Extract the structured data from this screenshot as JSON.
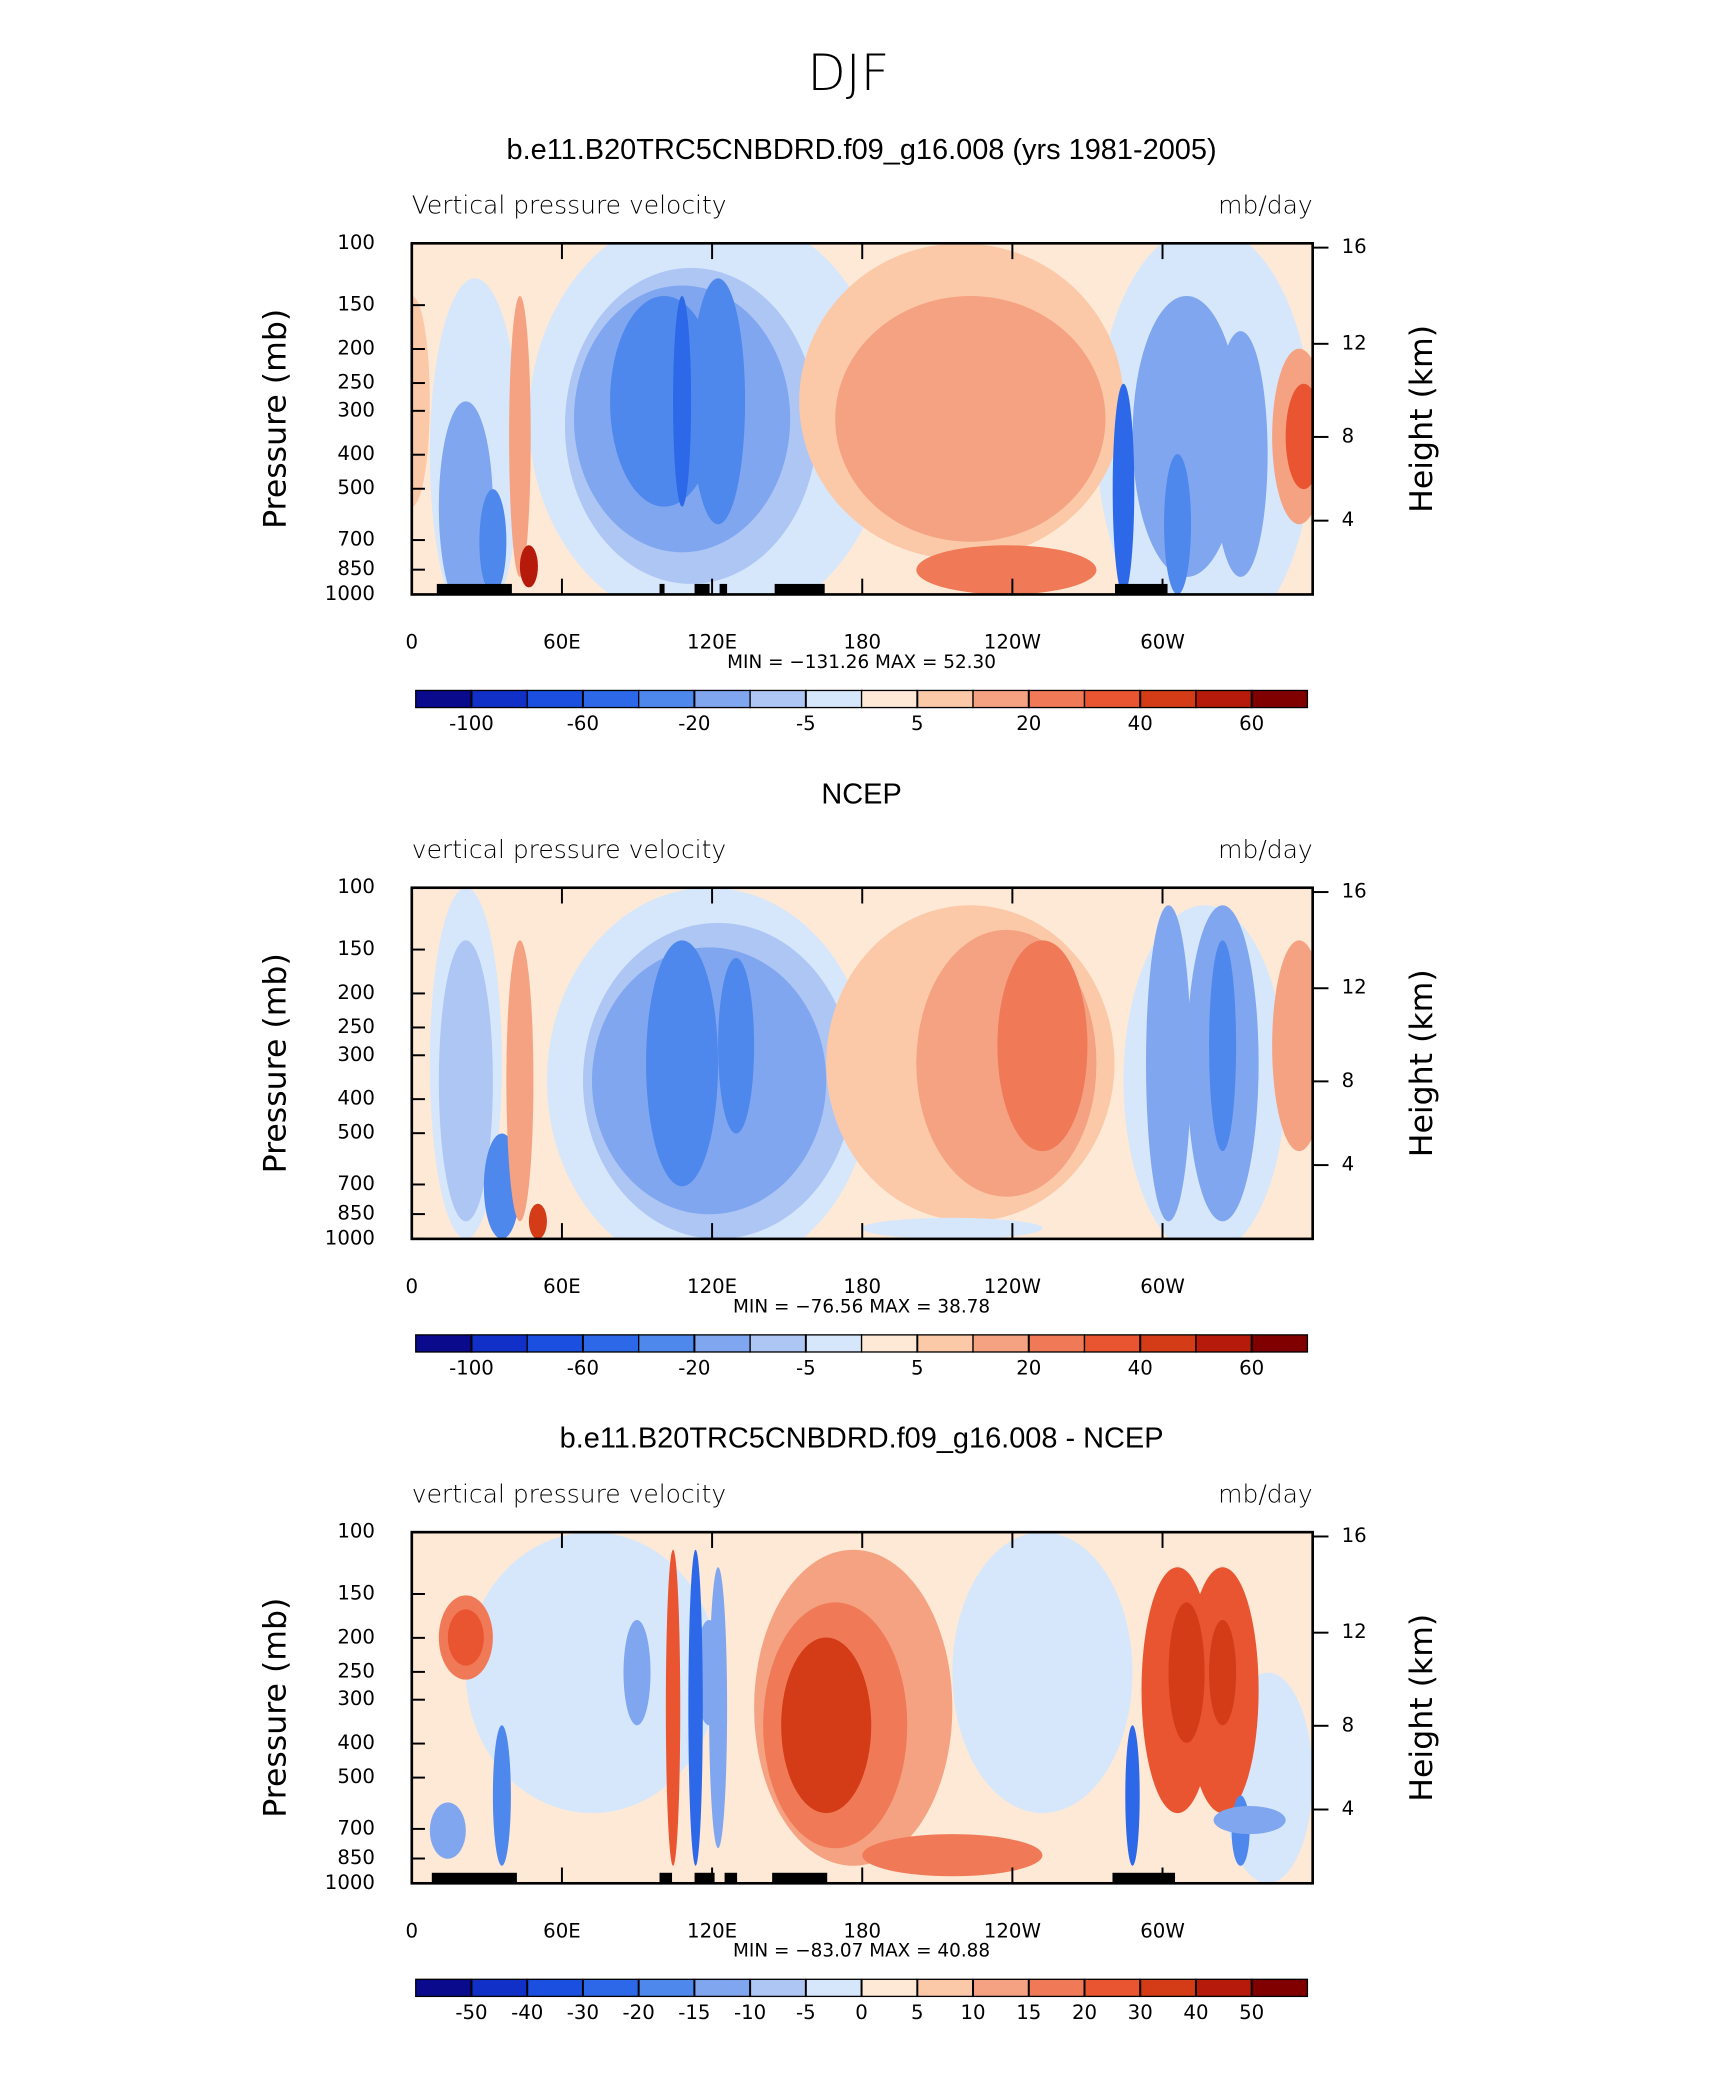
{
  "title": "DJF",
  "chart_data": [
    {
      "type": "contour",
      "title": "b.e11.B20TRC5CNBDRD.f09_g16.008 (yrs 1981-2005)",
      "subtitle_left": "Vertical pressure velocity",
      "units": "mb/day",
      "ylabel": "Pressure (mb)",
      "y2label": "Height (km)",
      "xlim": [
        0,
        360
      ],
      "xticks": [
        0,
        {
          "value": 60,
          "label": "60E"
        },
        {
          "value": 120,
          "label": "120E"
        },
        180,
        {
          "value": 240,
          "label": "120W"
        },
        {
          "value": 300,
          "label": "60W"
        }
      ],
      "ylim": [
        1000,
        100
      ],
      "yscale": "log",
      "yticks": [
        100,
        150,
        200,
        250,
        300,
        400,
        500,
        700,
        850,
        1000
      ],
      "y2scale": "standard-atmosphere",
      "y2ticks": [
        4,
        8,
        12,
        16
      ],
      "stats": "MIN = −131.26   MAX =   52.30",
      "colorbar": {
        "levels": [
          -100,
          -60,
          -20,
          -5,
          5,
          20,
          40,
          60
        ],
        "colors": [
          "#0a0a8c",
          "#1030c8",
          "#1a4fe0",
          "#2c68e8",
          "#4f88ec",
          "#80a6ef",
          "#adc6f4",
          "#d6e7fb",
          "#fde9d6",
          "#fbc9a8",
          "#f5a282",
          "#f07a57",
          "#e85530",
          "#d33c16",
          "#b51a0a",
          "#800000"
        ]
      }
    },
    {
      "type": "contour",
      "title": "NCEP",
      "subtitle_left": "vertical pressure velocity",
      "units": "mb/day",
      "ylabel": "Pressure (mb)",
      "y2label": "Height (km)",
      "xlim": [
        0,
        360
      ],
      "xticks": [
        0,
        {
          "value": 60,
          "label": "60E"
        },
        {
          "value": 120,
          "label": "120E"
        },
        180,
        {
          "value": 240,
          "label": "120W"
        },
        {
          "value": 300,
          "label": "60W"
        }
      ],
      "ylim": [
        1000,
        100
      ],
      "yscale": "log",
      "yticks": [
        100,
        150,
        200,
        250,
        300,
        400,
        500,
        700,
        850,
        1000
      ],
      "y2scale": "standard-atmosphere",
      "y2ticks": [
        4,
        8,
        12,
        16
      ],
      "stats": "MIN =  −76.56   MAX =   38.78",
      "colorbar": {
        "levels": [
          -100,
          -60,
          -20,
          -5,
          5,
          20,
          40,
          60
        ],
        "colors": [
          "#0a0a8c",
          "#1030c8",
          "#1a4fe0",
          "#2c68e8",
          "#4f88ec",
          "#80a6ef",
          "#adc6f4",
          "#d6e7fb",
          "#fde9d6",
          "#fbc9a8",
          "#f5a282",
          "#f07a57",
          "#e85530",
          "#d33c16",
          "#b51a0a",
          "#800000"
        ]
      }
    },
    {
      "type": "contour",
      "title": "b.e11.B20TRC5CNBDRD.f09_g16.008 - NCEP",
      "subtitle_left": "vertical pressure velocity",
      "units": "mb/day",
      "ylabel": "Pressure (mb)",
      "y2label": "Height (km)",
      "xlim": [
        0,
        360
      ],
      "xticks": [
        0,
        {
          "value": 60,
          "label": "60E"
        },
        {
          "value": 120,
          "label": "120E"
        },
        180,
        {
          "value": 240,
          "label": "120W"
        },
        {
          "value": 300,
          "label": "60W"
        }
      ],
      "ylim": [
        1000,
        100
      ],
      "yscale": "log",
      "yticks": [
        100,
        150,
        200,
        250,
        300,
        400,
        500,
        700,
        850,
        1000
      ],
      "y2scale": "standard-atmosphere",
      "y2ticks": [
        4,
        8,
        12,
        16
      ],
      "stats": "MIN =  −83.07   MAX =   40.88",
      "colorbar": {
        "levels": [
          -50,
          -40,
          -30,
          -20,
          -15,
          -10,
          -5,
          0,
          5,
          10,
          15,
          20,
          30,
          40,
          50
        ],
        "colors": [
          "#0a0a8c",
          "#1030c8",
          "#1a4fe0",
          "#2c68e8",
          "#4f88ec",
          "#80a6ef",
          "#adc6f4",
          "#d6e7fb",
          "#fde9d6",
          "#fbc9a8",
          "#f5a282",
          "#f07a57",
          "#e85530",
          "#d33c16",
          "#b51a0a",
          "#800000"
        ]
      }
    }
  ]
}
